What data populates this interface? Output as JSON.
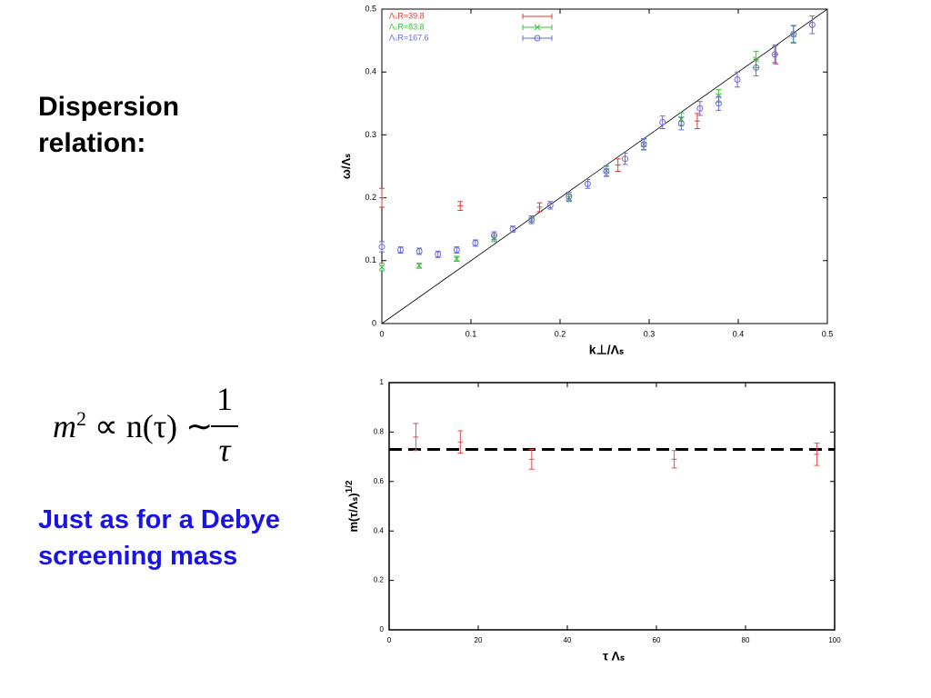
{
  "heading": "Dispersion relation:",
  "formula": {
    "base": "m",
    "exponent": "2",
    "middle": "∝ n(τ) ∼",
    "numerator": "1",
    "denominator": "τ"
  },
  "note": "Just as for a Debye screening mass",
  "chart_data": [
    {
      "type": "scatter",
      "xlabel": "k⊥/Λₛ",
      "ylabel": "ω/Λₛ",
      "xlim": [
        0,
        0.5
      ],
      "ylim": [
        0,
        0.5
      ],
      "xticks": [
        0,
        0.1,
        0.2,
        0.3,
        0.4,
        0.5
      ],
      "yticks": [
        0,
        0.1,
        0.2,
        0.3,
        0.4,
        0.5
      ],
      "diagonal": true,
      "legend": "top-left",
      "series": [
        {
          "name": "ΛₛR=39.8",
          "color": "#e03a3a",
          "marker": "plus",
          "x": [
            0,
            0.088,
            0.177,
            0.265,
            0.354,
            0.442
          ],
          "values": [
            0.2,
            0.187,
            0.185,
            0.252,
            0.322,
            0.428
          ],
          "errors": [
            0.015,
            0.007,
            0.007,
            0.01,
            0.012,
            0.015
          ]
        },
        {
          "name": "ΛₛR=83.8",
          "color": "#3cc03c",
          "marker": "cross",
          "x": [
            0,
            0.042,
            0.084,
            0.126,
            0.168,
            0.21,
            0.252,
            0.294,
            0.336,
            0.378,
            0.42,
            0.462
          ],
          "values": [
            0.09,
            0.092,
            0.103,
            0.135,
            0.165,
            0.2,
            0.243,
            0.285,
            0.325,
            0.362,
            0.42,
            0.46
          ],
          "errors": [
            0.006,
            0.004,
            0.004,
            0.005,
            0.006,
            0.006,
            0.008,
            0.008,
            0.01,
            0.01,
            0.013,
            0.013
          ]
        },
        {
          "name": "ΛₛR=167.6",
          "color": "#6a6ad8",
          "marker": "circle",
          "x": [
            0,
            0.021,
            0.042,
            0.063,
            0.084,
            0.105,
            0.126,
            0.147,
            0.168,
            0.189,
            0.21,
            0.231,
            0.252,
            0.273,
            0.294,
            0.315,
            0.336,
            0.357,
            0.378,
            0.399,
            0.42,
            0.441,
            0.462,
            0.483
          ],
          "values": [
            0.122,
            0.117,
            0.115,
            0.11,
            0.117,
            0.128,
            0.14,
            0.15,
            0.165,
            0.188,
            0.202,
            0.222,
            0.242,
            0.262,
            0.285,
            0.32,
            0.318,
            0.342,
            0.35,
            0.388,
            0.407,
            0.428,
            0.46,
            0.475
          ],
          "errors": [
            0.008,
            0.005,
            0.005,
            0.005,
            0.005,
            0.005,
            0.006,
            0.005,
            0.006,
            0.006,
            0.007,
            0.007,
            0.008,
            0.009,
            0.009,
            0.01,
            0.01,
            0.011,
            0.011,
            0.012,
            0.013,
            0.013,
            0.014,
            0.014
          ]
        }
      ]
    },
    {
      "type": "scatter",
      "xlabel": "τ Λₛ",
      "ylabel": "m(τ/Λₛ)",
      "ylabel_superscript": "1/2",
      "xlim": [
        0,
        100
      ],
      "ylim": [
        0,
        1
      ],
      "xticks": [
        0,
        20,
        40,
        60,
        80,
        100
      ],
      "yticks": [
        0,
        0.2,
        0.4,
        0.6,
        0.8,
        1
      ],
      "hline": 0.73,
      "color": "#e05050",
      "x": [
        6,
        16,
        32,
        64,
        96
      ],
      "values": [
        0.78,
        0.76,
        0.69,
        0.69,
        0.71
      ],
      "errors": [
        0.055,
        0.045,
        0.04,
        0.035,
        0.045
      ]
    }
  ]
}
